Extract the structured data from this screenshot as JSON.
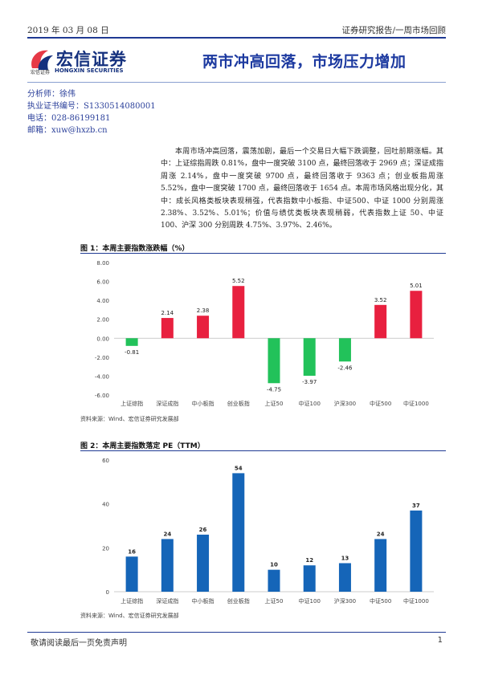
{
  "header": {
    "date": "2019 年 03 月 08 日",
    "report_type": "证券研究报告/一周市场回顾"
  },
  "logo": {
    "name_cn": "宏信证券",
    "sub_cn": "宏信证券",
    "name_en": "HONGXIN SECURITIES",
    "brand_color": "#15317e",
    "accent_color": "#e63946"
  },
  "title": "两市冲高回落，市场压力增加",
  "analyst": {
    "name_line": "分析师：徐伟",
    "license_line": "执业证书编号：S1330514080001",
    "phone_line": "电话：028-86199181",
    "email_line": "邮箱：xuw@hxzb.cn"
  },
  "summary": "本周市场冲高回落，震荡加剧，最后一个交易日大幅下跌调整，回吐前期涨幅。其中：上证综指周跌 0.81%，盘中一度突破 3100 点，最终回落收于 2969 点；深证成指周涨 2.14%，盘中一度突破 9700 点，最终回落收于 9363 点；创业板指周涨 5.52%，盘中一度突破 1700 点，最终回落收于 1654 点。本周市场风格出现分化，其中：成长风格类板块表现稍强，代表指数中小板指、中证500、中证 1000 分别周涨 2.38%、3.52%、5.01%；价值与绩优类板块表现稍弱，代表指数上证 50、中证 100、沪深 300 分别周跌 4.75%、3.97%、2.46%。",
  "figure1": {
    "title": "图 1：本周主要指数涨跌幅（%）",
    "source": "资料来源：Wind、宏信证券研究发展部"
  },
  "figure2": {
    "title": "图 2：本周主要指数落定 PE（TTM）",
    "source": "资料来源：Wind、宏信证券研究发展部"
  },
  "chart_data": [
    {
      "type": "bar",
      "categories": [
        "上证综指",
        "深证成指",
        "中小板指",
        "创业板指",
        "上证50",
        "中证100",
        "沪深300",
        "中证500",
        "中证1000"
      ],
      "values": [
        -0.81,
        2.14,
        2.38,
        5.52,
        -4.75,
        -3.97,
        -2.46,
        3.52,
        5.01
      ],
      "data_labels": [
        "-0.81",
        "2.14",
        "2.38",
        "5.52",
        "-4.75",
        "-3.97",
        "-2.46",
        "3.52",
        "5.01"
      ],
      "yticks": [
        "8.00",
        "6.00",
        "4.00",
        "2.00",
        "0.00",
        "-2.00",
        "-4.00",
        "-6.00"
      ],
      "ylim": [
        -6,
        8
      ],
      "positive_color": "#e8203f",
      "negative_color": "#22c25a",
      "grid": false
    },
    {
      "type": "bar",
      "categories": [
        "上证综指",
        "深证成指",
        "中小板指",
        "创业板指",
        "上证50",
        "中证100",
        "沪深300",
        "中证500",
        "中证1000"
      ],
      "values": [
        16,
        24,
        26,
        54,
        10,
        12,
        13,
        24,
        37
      ],
      "data_labels": [
        "16",
        "24",
        "26",
        "54",
        "10",
        "12",
        "13",
        "24",
        "37"
      ],
      "yticks": [
        "60",
        "40",
        "20",
        "0"
      ],
      "ylim": [
        0,
        60
      ],
      "bar_color": "#1565b8",
      "grid": false
    }
  ],
  "footer": {
    "disclaimer": "敬请阅读最后一页免责声明",
    "page": "1"
  }
}
